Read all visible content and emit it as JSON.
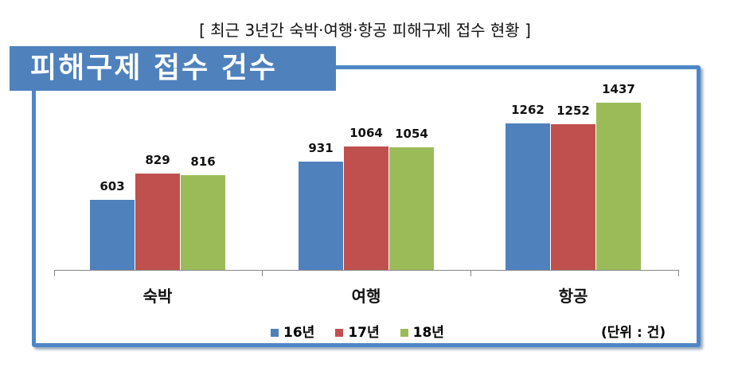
{
  "title": "[ 최근 3년간 숙박·여행·항공 피해구제 접수 현황 ]",
  "panel_title": "피해구제 접수 건수",
  "unit": "(단위 : 건)",
  "colors": {
    "16년": "#4f81bd",
    "17년": "#c0504d",
    "18년": "#9bbb59",
    "frame": "#4f86c6"
  },
  "chart_data": {
    "type": "bar",
    "title": "피해구제 접수 건수",
    "categories": [
      "숙박",
      "여행",
      "항공"
    ],
    "series": [
      {
        "name": "16년",
        "values": [
          603,
          931,
          1262
        ]
      },
      {
        "name": "17년",
        "values": [
          829,
          1064,
          1252
        ]
      },
      {
        "name": "18년",
        "values": [
          816,
          1054,
          1437
        ]
      }
    ],
    "xlabel": "",
    "ylabel": "",
    "unit": "건",
    "legend_position": "bottom",
    "grid": false
  }
}
